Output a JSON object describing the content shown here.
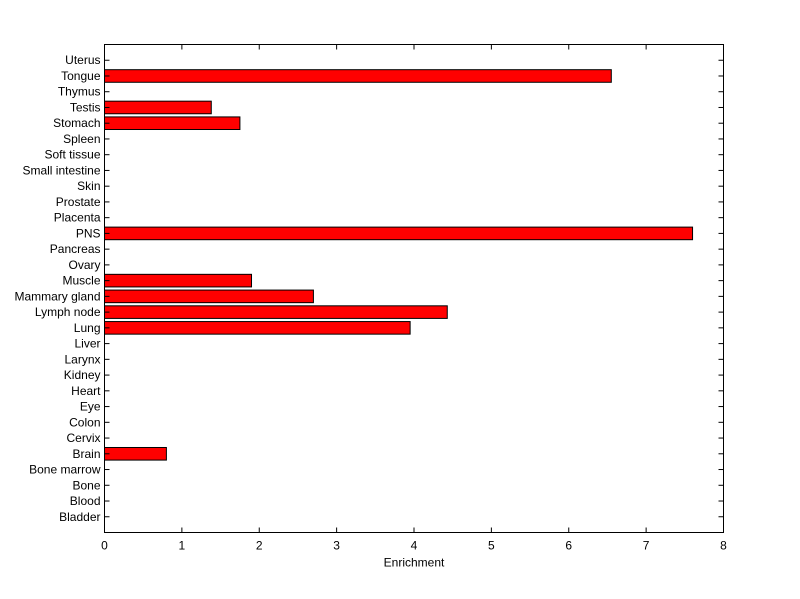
{
  "chart_data": {
    "type": "bar",
    "orientation": "horizontal",
    "title": "",
    "xlabel": "Enrichment",
    "ylabel": "",
    "xlim": [
      0,
      8
    ],
    "xticks": [
      "0",
      "1",
      "2",
      "3",
      "4",
      "5",
      "6",
      "7",
      "8"
    ],
    "grid": false,
    "legend": "none",
    "bar_color": "#ff0000",
    "edge_color": "#000000",
    "categories": [
      "Bladder",
      "Blood",
      "Bone",
      "Bone marrow",
      "Brain",
      "Cervix",
      "Colon",
      "Eye",
      "Heart",
      "Kidney",
      "Larynx",
      "Liver",
      "Lung",
      "Lymph node",
      "Mammary gland",
      "Muscle",
      "Ovary",
      "Pancreas",
      "PNS",
      "Placenta",
      "Prostate",
      "Skin",
      "Small intestine",
      "Soft tissue",
      "Spleen",
      "Stomach",
      "Testis",
      "Thymus",
      "Tongue",
      "Uterus"
    ],
    "values": [
      0,
      0,
      0,
      0,
      0.8,
      0,
      0,
      0,
      0,
      0,
      0,
      0,
      3.95,
      4.43,
      2.7,
      1.9,
      0,
      0,
      7.6,
      0,
      0,
      0,
      0,
      0,
      0,
      1.75,
      1.38,
      0,
      6.55,
      0
    ]
  }
}
